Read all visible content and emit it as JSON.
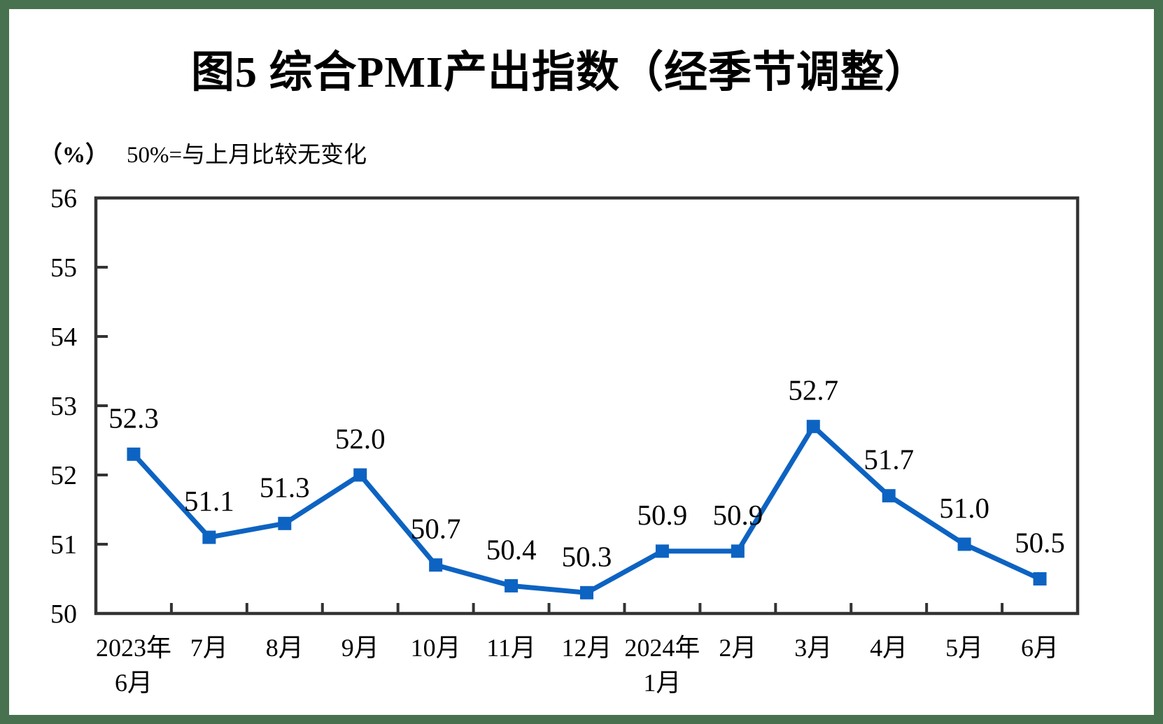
{
  "page": {
    "title": "图5  综合PMI产出指数（经季节调整）",
    "unit_label": "（%）",
    "note": "50%=与上月比较无变化"
  },
  "colors": {
    "frame_green": "#48714f",
    "line_blue": "#0d63c2",
    "axis_gray": "#333333",
    "text_black": "#000000",
    "background": "#ffffff"
  },
  "chart_data": {
    "type": "line",
    "title": "图5  综合PMI产出指数（经季节调整）",
    "unit": "（%）",
    "annotation": "50%=与上月比较无变化",
    "categories": [
      [
        "2023年",
        "6月"
      ],
      [
        "7月"
      ],
      [
        "8月"
      ],
      [
        "9月"
      ],
      [
        "10月"
      ],
      [
        "11月"
      ],
      [
        "12月"
      ],
      [
        "2024年",
        "1月"
      ],
      [
        "2月"
      ],
      [
        "3月"
      ],
      [
        "4月"
      ],
      [
        "5月"
      ],
      [
        "6月"
      ]
    ],
    "series": [
      {
        "name": "综合PMI产出指数",
        "values": [
          52.3,
          51.1,
          51.3,
          52.0,
          50.7,
          50.4,
          50.3,
          50.9,
          50.9,
          52.7,
          51.7,
          51.0,
          50.5
        ]
      }
    ],
    "ylim": [
      50,
      56
    ],
    "ytick_step": 1,
    "yticks": [
      50,
      51,
      52,
      53,
      54,
      55,
      56
    ],
    "grid": false,
    "legend_position": "none",
    "marker": "square",
    "data_labels": true,
    "data_label_format": "one-decimal"
  }
}
